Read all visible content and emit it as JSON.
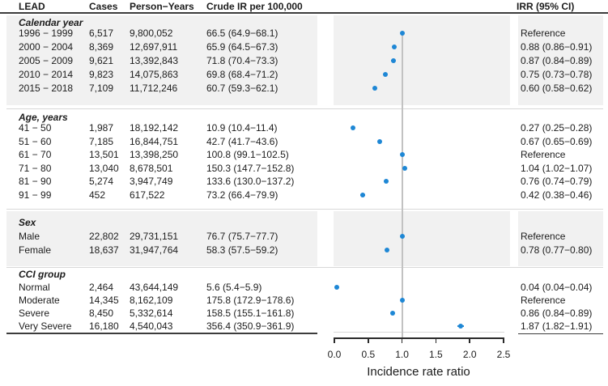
{
  "figure": {
    "header": {
      "lead": "LEAD",
      "cases": "Cases",
      "person_years": "Person−Years",
      "crude_ir": "Crude IR per 100,000",
      "irr": "IRR (95% CI)"
    },
    "axis": {
      "title": "Incidence rate ratio",
      "tick_labels": [
        "0.0",
        "0.5",
        "1.0",
        "1.5",
        "2.0",
        "2.5"
      ],
      "tick_values": [
        0,
        0.5,
        1.0,
        1.5,
        2.0,
        2.5
      ]
    },
    "sections": [
      {
        "label": "Calendar year",
        "shaded": true,
        "rows": [
          {
            "label": "1996 − 1999",
            "cases": "6,517",
            "person_years": "9,800,052",
            "crude_ir": "66.5 (64.9−68.1)",
            "irr": "Reference",
            "est": 1.0,
            "lo": null,
            "hi": null
          },
          {
            "label": "2000 − 2004",
            "cases": "8,369",
            "person_years": "12,697,911",
            "crude_ir": "65.9 (64.5−67.3)",
            "irr": "0.88 (0.86−0.91)",
            "est": 0.88,
            "lo": 0.86,
            "hi": 0.91
          },
          {
            "label": "2005 − 2009",
            "cases": "9,621",
            "person_years": "13,392,843",
            "crude_ir": "71.8 (70.4−73.3)",
            "irr": "0.87 (0.84−0.89)",
            "est": 0.87,
            "lo": 0.84,
            "hi": 0.89
          },
          {
            "label": "2010 − 2014",
            "cases": "9,823",
            "person_years": "14,075,863",
            "crude_ir": "69.8 (68.4−71.2)",
            "irr": "0.75 (0.73−0.78)",
            "est": 0.75,
            "lo": 0.73,
            "hi": 0.78
          },
          {
            "label": "2015 − 2018",
            "cases": "7,109",
            "person_years": "11,712,246",
            "crude_ir": "60.7 (59.3−62.1)",
            "irr": "0.60 (0.58−0.62)",
            "est": 0.6,
            "lo": 0.58,
            "hi": 0.62
          }
        ]
      },
      {
        "label": "Age, years",
        "shaded": false,
        "rows": [
          {
            "label": "41 − 50",
            "cases": "1,987",
            "person_years": "18,192,142",
            "crude_ir": "10.9 (10.4−11.4)",
            "irr": "0.27 (0.25−0.28)",
            "est": 0.27,
            "lo": 0.25,
            "hi": 0.28
          },
          {
            "label": "51 − 60",
            "cases": "7,185",
            "person_years": "16,844,751",
            "crude_ir": "42.7 (41.7−43.6)",
            "irr": "0.67 (0.65−0.69)",
            "est": 0.67,
            "lo": 0.65,
            "hi": 0.69
          },
          {
            "label": "61 − 70",
            "cases": "13,501",
            "person_years": "13,398,250",
            "crude_ir": "100.8 (99.1−102.5)",
            "irr": "Reference",
            "est": 1.0,
            "lo": null,
            "hi": null
          },
          {
            "label": "71 − 80",
            "cases": "13,040",
            "person_years": "8,678,501",
            "crude_ir": "150.3 (147.7−152.8)",
            "irr": "1.04 (1.02−1.07)",
            "est": 1.04,
            "lo": 1.02,
            "hi": 1.07
          },
          {
            "label": "81 − 90",
            "cases": "5,274",
            "person_years": "3,947,749",
            "crude_ir": "133.6 (130.0−137.2)",
            "irr": "0.76 (0.74−0.79)",
            "est": 0.76,
            "lo": 0.74,
            "hi": 0.79
          },
          {
            "label": "91 − 99",
            "cases": "452",
            "person_years": "617,522",
            "crude_ir": "73.2 (66.4−79.9)",
            "irr": "0.42 (0.38−0.46)",
            "est": 0.42,
            "lo": 0.38,
            "hi": 0.46
          }
        ]
      },
      {
        "label": "Sex",
        "shaded": true,
        "rows": [
          {
            "label": "Male",
            "cases": "22,802",
            "person_years": "29,731,151",
            "crude_ir": "76.7 (75.7−77.7)",
            "irr": "Reference",
            "est": 1.0,
            "lo": null,
            "hi": null
          },
          {
            "label": "Female",
            "cases": "18,637",
            "person_years": "31,947,764",
            "crude_ir": "58.3 (57.5−59.2)",
            "irr": "0.78 (0.77−0.80)",
            "est": 0.78,
            "lo": 0.77,
            "hi": 0.8
          }
        ]
      },
      {
        "label": "CCI group",
        "shaded": false,
        "rows": [
          {
            "label": "Normal",
            "cases": "2,464",
            "person_years": "43,644,149",
            "crude_ir": "5.6 (5.4−5.9)",
            "irr": "0.04 (0.04−0.04)",
            "est": 0.04,
            "lo": 0.04,
            "hi": 0.04
          },
          {
            "label": "Moderate",
            "cases": "14,345",
            "person_years": "8,162,109",
            "crude_ir": "175.8 (172.9−178.6)",
            "irr": "Reference",
            "est": 1.0,
            "lo": null,
            "hi": null
          },
          {
            "label": "Severe",
            "cases": "8,450",
            "person_years": "5,332,614",
            "crude_ir": "158.5 (155.1−161.8)",
            "irr": "0.86 (0.84−0.89)",
            "est": 0.86,
            "lo": 0.84,
            "hi": 0.89
          },
          {
            "label": "Very Severe",
            "cases": "16,180",
            "person_years": "4,540,043",
            "crude_ir": "356.4 (350.9−361.9)",
            "irr": "1.87 (1.82−1.91)",
            "est": 1.87,
            "lo": 1.82,
            "hi": 1.91
          }
        ]
      }
    ]
  },
  "chart_data": {
    "type": "scatter",
    "subtype": "forest-plot",
    "xlabel": "Incidence rate ratio",
    "xlim": [
      0,
      2.5
    ],
    "x_ticks": [
      0,
      0.5,
      1.0,
      1.5,
      2.0,
      2.5
    ],
    "reference_line_x": 1.0,
    "grid": false,
    "series": [
      {
        "name": "Calendar year",
        "categories": [
          "1996 − 1999",
          "2000 − 2004",
          "2005 − 2009",
          "2010 − 2014",
          "2015 − 2018"
        ],
        "irr": [
          1.0,
          0.88,
          0.87,
          0.75,
          0.6
        ],
        "ci_low": [
          null,
          0.86,
          0.84,
          0.73,
          0.58
        ],
        "ci_high": [
          null,
          0.91,
          0.89,
          0.78,
          0.62
        ]
      },
      {
        "name": "Age, years",
        "categories": [
          "41 − 50",
          "51 − 60",
          "61 − 70",
          "71 − 80",
          "81 − 90",
          "91 − 99"
        ],
        "irr": [
          0.27,
          0.67,
          1.0,
          1.04,
          0.76,
          0.42
        ],
        "ci_low": [
          0.25,
          0.65,
          null,
          1.02,
          0.74,
          0.38
        ],
        "ci_high": [
          0.28,
          0.69,
          null,
          1.07,
          0.79,
          0.46
        ]
      },
      {
        "name": "Sex",
        "categories": [
          "Male",
          "Female"
        ],
        "irr": [
          1.0,
          0.78
        ],
        "ci_low": [
          null,
          0.77
        ],
        "ci_high": [
          null,
          0.8
        ]
      },
      {
        "name": "CCI group",
        "categories": [
          "Normal",
          "Moderate",
          "Severe",
          "Very Severe"
        ],
        "irr": [
          0.04,
          1.0,
          0.86,
          1.87
        ],
        "ci_low": [
          0.04,
          null,
          0.84,
          1.82
        ],
        "ci_high": [
          0.04,
          null,
          0.89,
          1.91
        ]
      }
    ]
  },
  "colors": {
    "point_blue": "#1e87d5",
    "band_gray": "#f1f1f1",
    "reference_line_gray": "#c2c2c2",
    "rule_dark": "#3c3c3c",
    "rule_light": "#d8d8d8",
    "text": "#1c1c1c"
  }
}
